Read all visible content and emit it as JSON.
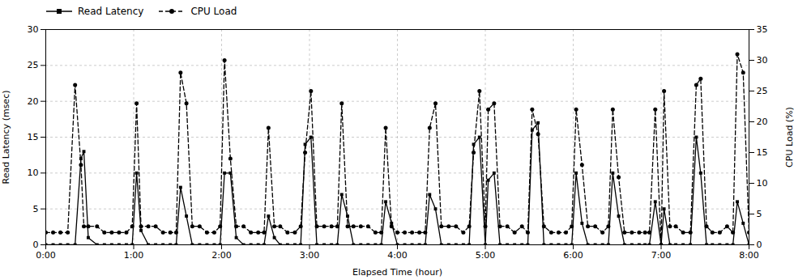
{
  "chart_data": {
    "type": "line",
    "xlabel": "Elapsed Time (hour)",
    "ylabel": "Read Latency (msec)",
    "y2label": "CPU Load (%)",
    "x": [
      0,
      5,
      10,
      15,
      20,
      24,
      26,
      29,
      35,
      40,
      45,
      50,
      55,
      59,
      62,
      65,
      70,
      75,
      80,
      85,
      89,
      92,
      96,
      100,
      105,
      110,
      115,
      119,
      122,
      126,
      130,
      135,
      140,
      145,
      149,
      152,
      156,
      160,
      165,
      170,
      174,
      177,
      181,
      185,
      190,
      195,
      199,
      202,
      206,
      210,
      215,
      220,
      225,
      229,
      232,
      236,
      240,
      245,
      250,
      255,
      259,
      262,
      266,
      270,
      275,
      280,
      285,
      289,
      292,
      296,
      300,
      302,
      306,
      310,
      315,
      320,
      325,
      329,
      332,
      336,
      340,
      345,
      350,
      355,
      359,
      362,
      366,
      370,
      375,
      380,
      384,
      387,
      391,
      395,
      400,
      405,
      409,
      412,
      416,
      420,
      422,
      426,
      430,
      435,
      440,
      444,
      447,
      451,
      455,
      460,
      465,
      469,
      472,
      476,
      480
    ],
    "xlim": [
      0,
      480
    ],
    "xticks": [
      {
        "value": 0,
        "label": "0:00"
      },
      {
        "value": 60,
        "label": "1:00"
      },
      {
        "value": 120,
        "label": "2:00"
      },
      {
        "value": 180,
        "label": "3:00"
      },
      {
        "value": 240,
        "label": "4:00"
      },
      {
        "value": 300,
        "label": "5:00"
      },
      {
        "value": 360,
        "label": "6:00"
      },
      {
        "value": 420,
        "label": "7:00"
      },
      {
        "value": 480,
        "label": "8:00"
      }
    ],
    "ylim": [
      0,
      30
    ],
    "yticks": [
      0,
      5,
      10,
      15,
      20,
      25,
      30
    ],
    "y2lim": [
      0,
      35
    ],
    "y2ticks": [
      0,
      5,
      10,
      15,
      20,
      25,
      30,
      35
    ],
    "grid": true,
    "legend": "upper left",
    "series": [
      {
        "name": "Read Latency",
        "color": "black",
        "marker": "square",
        "line_style": "solid",
        "values": [
          0,
          0,
          0,
          0,
          0,
          12,
          13,
          1,
          0,
          0,
          0,
          0,
          0,
          0,
          10,
          2,
          0,
          0,
          0,
          0,
          0,
          8,
          4,
          0,
          0,
          0,
          0,
          0,
          10,
          10,
          1,
          0,
          0,
          0,
          0,
          4,
          1,
          0,
          0,
          0,
          0,
          14,
          15,
          0,
          0,
          0,
          0,
          7,
          4,
          0,
          0,
          0,
          0,
          0,
          6,
          3,
          0,
          0,
          0,
          0,
          0,
          7,
          5,
          0,
          0,
          0,
          0,
          0,
          14,
          15,
          0,
          9,
          10,
          0,
          0,
          0,
          0,
          0,
          16,
          17,
          0,
          0,
          0,
          0,
          0,
          10,
          3,
          0,
          0,
          0,
          0,
          10,
          4,
          0,
          0,
          0,
          0,
          0,
          6,
          0,
          5,
          0,
          0,
          0,
          0,
          15,
          10,
          0,
          0,
          0,
          0,
          0,
          6,
          3,
          0
        ]
      },
      {
        "name": "CPU Load",
        "color": "black",
        "marker": "circle",
        "line_style": "dashed",
        "axis": "y2",
        "values": [
          2,
          2,
          2,
          2,
          26,
          13,
          3,
          3,
          3,
          2,
          2,
          2,
          2,
          3,
          23,
          3,
          3,
          3,
          2,
          2,
          2,
          28,
          23,
          3,
          3,
          2,
          2,
          3,
          30,
          14,
          3,
          3,
          2,
          2,
          2,
          19,
          3,
          3,
          2,
          2,
          3,
          15,
          25,
          3,
          3,
          3,
          3,
          23,
          3,
          3,
          3,
          3,
          2,
          2,
          19,
          3,
          2,
          2,
          2,
          2,
          2,
          19,
          23,
          3,
          3,
          3,
          2,
          3,
          15,
          25,
          3,
          22,
          23,
          3,
          3,
          2,
          3,
          2,
          22,
          18,
          3,
          2,
          2,
          2,
          3,
          22,
          13,
          3,
          3,
          2,
          3,
          22,
          11,
          2,
          2,
          2,
          2,
          2,
          22,
          0,
          25,
          3,
          3,
          2,
          2,
          26,
          27,
          3,
          2,
          2,
          3,
          2,
          31,
          28,
          2
        ]
      }
    ]
  }
}
